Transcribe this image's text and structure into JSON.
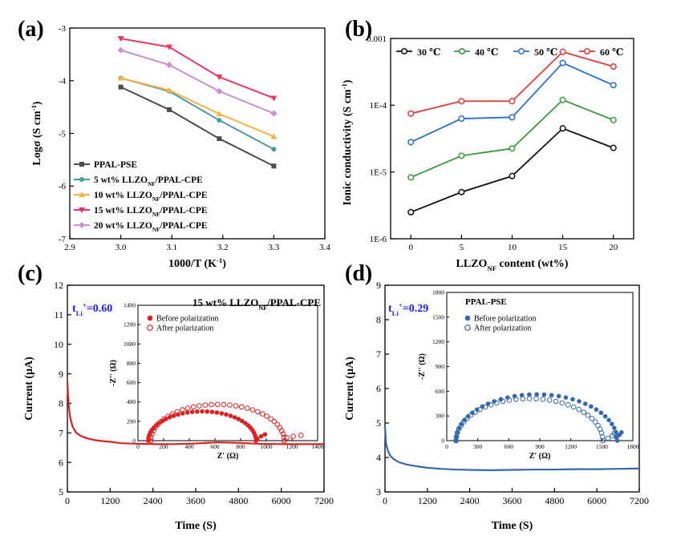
{
  "figure": {
    "panels": [
      "(a)",
      "(b)",
      "(c)",
      "(d)"
    ]
  },
  "chart_data": [
    {
      "id": "a",
      "type": "line",
      "panel_label": "(a)",
      "xlabel": "1000/T (K",
      "xlabel_sup": "-1",
      "xlabel_end": ")",
      "ylabel": "Logσ (S cm",
      "ylabel_sup": "-1",
      "ylabel_end": ")",
      "xlim": [
        2.9,
        3.4
      ],
      "ylim": [
        -7,
        -3
      ],
      "xticks": [
        "2.9",
        "3.0",
        "3.1",
        "3.2",
        "3.3",
        "3.4"
      ],
      "yticks": [
        "-7",
        "-6",
        "-5",
        "-4",
        "-3"
      ],
      "x": [
        3.0,
        3.095,
        3.193,
        3.3
      ],
      "legend_position": "bottom-left",
      "series": [
        {
          "name": "PPAL-PSE",
          "color": "#4d4d4d",
          "marker": "square",
          "values": [
            -4.12,
            -4.55,
            -5.1,
            -5.62
          ]
        },
        {
          "name": "5 wt% LLZO",
          "name_sub": "NF",
          "name_end": "/PPAL-CPE",
          "color": "#4a9aa5",
          "marker": "circle",
          "values": [
            -3.95,
            -4.2,
            -4.75,
            -5.3
          ]
        },
        {
          "name": "10 wt% LLZO",
          "name_sub": "NF",
          "name_end": "/PPAL-CPE",
          "color": "#f5b342",
          "marker": "triangle",
          "values": [
            -3.95,
            -4.18,
            -4.63,
            -5.06
          ]
        },
        {
          "name": "15 wt% LLZO",
          "name_sub": "NF",
          "name_end": "/PPAL-CPE",
          "color": "#ee3460",
          "marker": "triangle-down",
          "values": [
            -3.2,
            -3.36,
            -3.93,
            -4.33
          ]
        },
        {
          "name": "20 wt% LLZO",
          "name_sub": "NF",
          "name_end": "/PPAL-CPE",
          "color": "#c88fd1",
          "marker": "diamond",
          "values": [
            -3.42,
            -3.7,
            -4.2,
            -4.62
          ]
        }
      ]
    },
    {
      "id": "b",
      "type": "line",
      "panel_label": "(b)",
      "xlabel": "LLZO",
      "xlabel_sub": "NF",
      "xlabel_end": " content (wt%)",
      "ylabel": "Ionic conductivity (S cm",
      "ylabel_sup": "-1",
      "ylabel_end": ")",
      "yscale": "log",
      "xlim": [
        -2,
        22
      ],
      "ylim": [
        1e-06,
        0.001
      ],
      "xticks": [
        "0",
        "5",
        "10",
        "15",
        "20"
      ],
      "yticks": [
        "1E-6",
        "1E-5",
        "1E-4",
        "0.001"
      ],
      "x": [
        0,
        5,
        10,
        15,
        20
      ],
      "legend_position": "top",
      "series": [
        {
          "name": "30 ℃",
          "color": "#111111",
          "values": [
            2.5e-06,
            5e-06,
            8.7e-06,
            4.5e-05,
            2.3e-05
          ]
        },
        {
          "name": "40 ℃",
          "color": "#3a9a3a",
          "values": [
            8.3e-06,
            1.75e-05,
            2.25e-05,
            0.00012,
            6e-05
          ]
        },
        {
          "name": "50  ℃",
          "color": "#2a6fd0",
          "values": [
            2.8e-05,
            6.3e-05,
            6.6e-05,
            0.00043,
            0.0002
          ]
        },
        {
          "name": "60 ℃",
          "color": "#e23a3a",
          "values": [
            7.5e-05,
            0.000115,
            0.000115,
            0.00063,
            0.00038
          ]
        }
      ]
    },
    {
      "id": "c",
      "type": "line",
      "panel_label": "(c)",
      "xlabel": "Time (S)",
      "ylabel": "Current (μA)",
      "xlim": [
        0,
        7200
      ],
      "ylim": [
        5,
        12
      ],
      "xticks": [
        "0",
        "1200",
        "2400",
        "3600",
        "4800",
        "6000",
        "7200"
      ],
      "yticks": [
        "5",
        "6",
        "7",
        "8",
        "9",
        "10",
        "11",
        "12"
      ],
      "color": "#e02020",
      "series": [
        {
          "name": "current",
          "x": [
            0,
            40,
            80,
            150,
            250,
            400,
            600,
            800,
            1000,
            1200,
            1500,
            2000,
            2500,
            3000,
            3600,
            4200,
            4800,
            5400,
            6000,
            6600,
            7200
          ],
          "values": [
            8.7,
            7.9,
            7.5,
            7.2,
            7.0,
            6.88,
            6.8,
            6.75,
            6.72,
            6.7,
            6.65,
            6.63,
            6.62,
            6.62,
            6.64,
            6.68,
            6.66,
            6.63,
            6.62,
            6.62,
            6.62
          ]
        }
      ],
      "annotation": {
        "main": "t",
        "sub": "Li",
        "sup": "+",
        "value": "=0.60",
        "color": "#1a1aff"
      },
      "inset": {
        "title": "15 wt% LLZO",
        "title_sub": "NF",
        "title_end": "/PPAL-CPE",
        "xlabel": "Z' (Ω)",
        "ylabel": "-Z'' (Ω)",
        "xlim": [
          0,
          1400
        ],
        "ylim": [
          0,
          1400
        ],
        "xticks": [
          "0",
          "200",
          "400",
          "600",
          "800",
          "1000",
          "1200",
          "1400"
        ],
        "yticks": [
          "0",
          "200",
          "400",
          "600",
          "800",
          "1000",
          "1200",
          "1400"
        ],
        "color": "#e02020",
        "legend": [
          "Before polarization",
          "After polarization"
        ],
        "before": {
          "center": 500,
          "radius": 420,
          "tail": [
            [
              930,
              20
            ],
            [
              960,
              45
            ],
            [
              990,
              65
            ]
          ]
        },
        "after": {
          "center": 620,
          "radius": 520,
          "tail": [
            [
              1160,
              30
            ],
            [
              1210,
              45
            ],
            [
              1270,
              55
            ]
          ]
        }
      }
    },
    {
      "id": "d",
      "type": "line",
      "panel_label": "(d)",
      "xlabel": "Time (S)",
      "ylabel": "Current (μA)",
      "xlim": [
        0,
        7200
      ],
      "ylim": [
        3,
        9
      ],
      "xticks": [
        "0",
        "1200",
        "2400",
        "3600",
        "4800",
        "6000",
        "7200"
      ],
      "yticks": [
        "3",
        "4",
        "5",
        "6",
        "7",
        "8",
        "9"
      ],
      "color": "#3568b0",
      "series": [
        {
          "name": "current",
          "x": [
            0,
            30,
            80,
            150,
            250,
            400,
            600,
            800,
            1000,
            1200,
            1600,
            2000,
            2400,
            3000,
            3600,
            4200,
            4800,
            5400,
            6000,
            6600,
            7200
          ],
          "values": [
            4.9,
            4.4,
            4.2,
            4.05,
            3.95,
            3.86,
            3.8,
            3.76,
            3.73,
            3.7,
            3.67,
            3.65,
            3.64,
            3.63,
            3.64,
            3.65,
            3.65,
            3.66,
            3.66,
            3.67,
            3.68
          ]
        }
      ],
      "annotation": {
        "main": "t",
        "sub": "Li",
        "sup": "+",
        "value": "=0.29",
        "color": "#1a1aff"
      },
      "inset": {
        "title": "PPAL-PSE",
        "xlabel": "Z' (Ω)",
        "ylabel": "-Z'' (Ω)",
        "xlim": [
          0,
          1800
        ],
        "ylim": [
          0,
          1800
        ],
        "xticks": [
          "0",
          "300",
          "600",
          "900",
          "1200",
          "1500",
          "1800"
        ],
        "yticks": [
          "0",
          "300",
          "600",
          "900",
          "1200",
          "1500",
          "1800"
        ],
        "color": "#3568b0",
        "legend": [
          "Before polarization",
          "After polarization"
        ],
        "before": {
          "center": 870,
          "radius": 780,
          "tail": [
            [
              1640,
              40
            ],
            [
              1670,
              70
            ],
            [
              1690,
              100
            ]
          ]
        },
        "after": {
          "center": 800,
          "radius": 710,
          "tail": [
            [
              1560,
              30
            ],
            [
              1600,
              60
            ],
            [
              1620,
              90
            ]
          ]
        }
      }
    }
  ]
}
